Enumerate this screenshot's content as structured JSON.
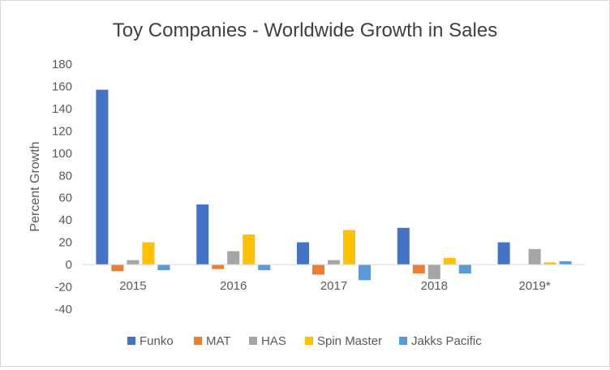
{
  "chart_data": {
    "type": "bar",
    "title": "Toy Companies - Worldwide Growth in Sales",
    "xlabel": "",
    "ylabel": "Percent Growth",
    "ylim": [
      -40,
      180
    ],
    "yticks": [
      -40,
      -20,
      0,
      20,
      40,
      60,
      80,
      100,
      120,
      140,
      160,
      180
    ],
    "grid": false,
    "legend_position": "bottom",
    "categories": [
      "2015",
      "2016",
      "2017",
      "2018",
      "2019*"
    ],
    "series": [
      {
        "name": "Funko",
        "color": "#4472c4",
        "values": [
          157,
          54,
          20,
          33,
          20
        ]
      },
      {
        "name": "MAT",
        "color": "#ed7d31",
        "values": [
          -6,
          -4,
          -9,
          -8,
          0
        ]
      },
      {
        "name": "HAS",
        "color": "#a5a5a5",
        "values": [
          4,
          12,
          4,
          -13,
          14
        ]
      },
      {
        "name": "Spin Master",
        "color": "#ffc000",
        "values": [
          20,
          27,
          31,
          6,
          2
        ]
      },
      {
        "name": "Jakks Pacific",
        "color": "#5b9bd5",
        "values": [
          -5,
          -5,
          -14,
          -8,
          3
        ]
      }
    ]
  }
}
